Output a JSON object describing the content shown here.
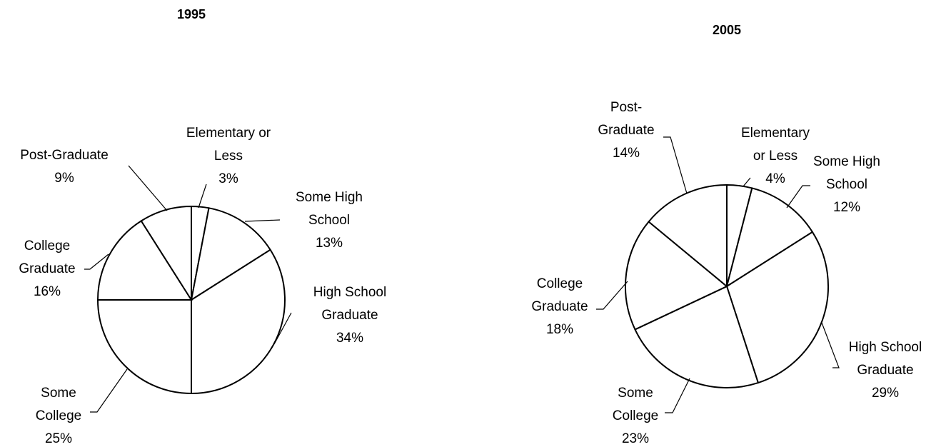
{
  "chart_data": [
    {
      "type": "pie",
      "title": "1995",
      "slices": [
        {
          "label": "Elementary or Less",
          "label_lines": [
            "Elementary or",
            "Less"
          ],
          "value": 3,
          "value_label": "3%"
        },
        {
          "label": "Some High School",
          "label_lines": [
            "Some High",
            "School"
          ],
          "value": 13,
          "value_label": "13%"
        },
        {
          "label": "High School Graduate",
          "label_lines": [
            "High School",
            "Graduate"
          ],
          "value": 34,
          "value_label": "34%"
        },
        {
          "label": "Some College",
          "label_lines": [
            "Some",
            "College"
          ],
          "value": 25,
          "value_label": "25%"
        },
        {
          "label": "College Graduate",
          "label_lines": [
            "College",
            "Graduate"
          ],
          "value": 16,
          "value_label": "16%"
        },
        {
          "label": "Post-Graduate",
          "label_lines": [
            "Post-Graduate"
          ],
          "value": 9,
          "value_label": "9%"
        }
      ],
      "start": "12 o'clock",
      "direction": "clockwise",
      "colors": {
        "fill": "#ffffff",
        "stroke": "#000000"
      }
    },
    {
      "type": "pie",
      "title": "2005",
      "slices": [
        {
          "label": "Elementary or Less",
          "label_lines": [
            "Elementary",
            "or Less"
          ],
          "value": 4,
          "value_label": "4%"
        },
        {
          "label": "Some High School",
          "label_lines": [
            "Some High",
            "School"
          ],
          "value": 12,
          "value_label": "12%"
        },
        {
          "label": "High School Graduate",
          "label_lines": [
            "High School",
            "Graduate"
          ],
          "value": 29,
          "value_label": "29%"
        },
        {
          "label": "Some College",
          "label_lines": [
            "Some",
            "College"
          ],
          "value": 23,
          "value_label": "23%"
        },
        {
          "label": "College Graduate",
          "label_lines": [
            "College",
            "Graduate"
          ],
          "value": 18,
          "value_label": "18%"
        },
        {
          "label": "Post-Graduate",
          "label_lines": [
            "Post-",
            "Graduate"
          ],
          "value": 14,
          "value_label": "14%"
        }
      ],
      "start": "12 o'clock",
      "direction": "clockwise",
      "colors": {
        "fill": "#ffffff",
        "stroke": "#000000"
      }
    }
  ]
}
